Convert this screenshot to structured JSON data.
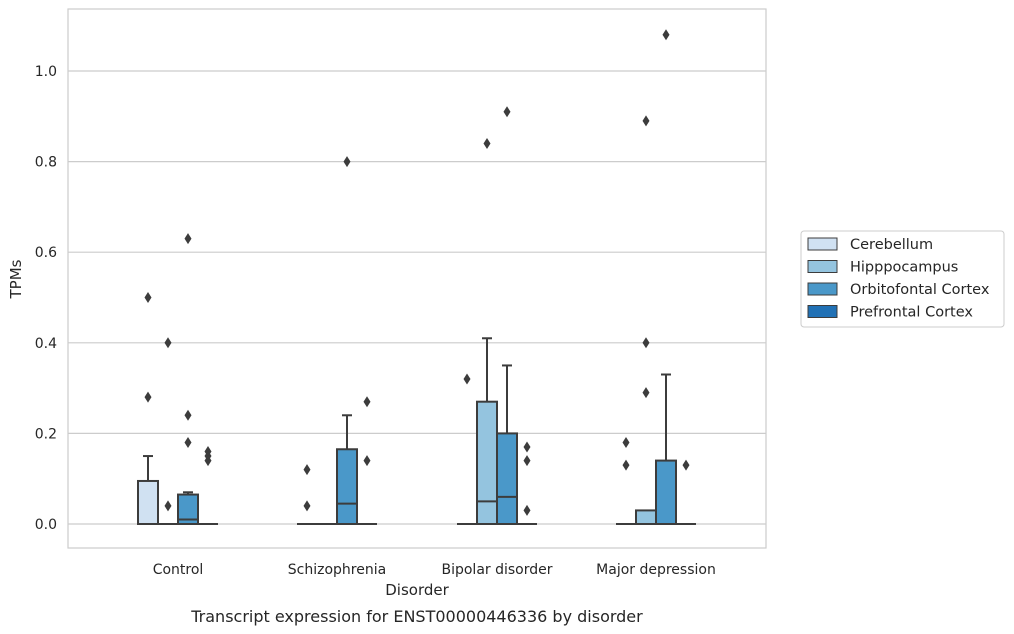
{
  "chart_data": {
    "type": "box",
    "title": "",
    "caption": "Transcript expression for ENST00000446336 by disorder",
    "xlabel": "Disorder",
    "ylabel": "TPMs",
    "ylim": [
      -0.05,
      1.14
    ],
    "yticks": [
      0.0,
      0.2,
      0.4,
      0.6,
      0.8,
      1.0
    ],
    "ytick_labels": [
      "0.0",
      "0.2",
      "0.4",
      "0.6",
      "0.8",
      "1.0"
    ],
    "grid": "horizontal",
    "legend_position": "right",
    "categories": [
      "Control",
      "Schizophrenia",
      "Bipolar disorder",
      "Major depression"
    ],
    "series": [
      {
        "name": "Cerebellum",
        "color": "#d0e1f2",
        "boxes": [
          {
            "q1": 0.0,
            "median": 0.0,
            "q3": 0.095,
            "whisker_low": 0.0,
            "whisker_high": 0.15,
            "outliers": [
              0.5,
              0.28
            ]
          },
          {
            "q1": 0.0,
            "median": 0.0,
            "q3": 0.0,
            "whisker_low": 0.0,
            "whisker_high": 0.0,
            "outliers": [
              0.12,
              0.04
            ]
          },
          {
            "q1": 0.0,
            "median": 0.0,
            "q3": 0.0,
            "whisker_low": 0.0,
            "whisker_high": 0.0,
            "outliers": [
              0.32
            ]
          },
          {
            "q1": 0.0,
            "median": 0.0,
            "q3": 0.0,
            "whisker_low": 0.0,
            "whisker_high": 0.0,
            "outliers": [
              0.18,
              0.13
            ]
          }
        ]
      },
      {
        "name": "Hipppocampus",
        "color": "#94c4df",
        "boxes": [
          {
            "q1": 0.0,
            "median": 0.0,
            "q3": 0.0,
            "whisker_low": 0.0,
            "whisker_high": 0.0,
            "outliers": [
              0.4,
              0.04
            ]
          },
          {
            "q1": 0.0,
            "median": 0.0,
            "q3": 0.0,
            "whisker_low": 0.0,
            "whisker_high": 0.0,
            "outliers": []
          },
          {
            "q1": 0.0,
            "median": 0.05,
            "q3": 0.27,
            "whisker_low": 0.0,
            "whisker_high": 0.41,
            "outliers": [
              0.84
            ]
          },
          {
            "q1": 0.0,
            "median": 0.0,
            "q3": 0.03,
            "whisker_low": 0.0,
            "whisker_high": 0.03,
            "outliers": [
              0.89,
              0.4,
              0.29
            ]
          }
        ]
      },
      {
        "name": "Orbitofontal Cortex",
        "color": "#4a98c9",
        "boxes": [
          {
            "q1": 0.0,
            "median": 0.01,
            "q3": 0.065,
            "whisker_low": 0.0,
            "whisker_high": 0.07,
            "outliers": [
              0.63,
              0.24,
              0.18
            ]
          },
          {
            "q1": 0.0,
            "median": 0.045,
            "q3": 0.165,
            "whisker_low": 0.0,
            "whisker_high": 0.24,
            "outliers": [
              0.8
            ]
          },
          {
            "q1": 0.0,
            "median": 0.06,
            "q3": 0.2,
            "whisker_low": 0.0,
            "whisker_high": 0.35,
            "outliers": [
              0.91
            ]
          },
          {
            "q1": 0.0,
            "median": 0.0,
            "q3": 0.14,
            "whisker_low": 0.0,
            "whisker_high": 0.33,
            "outliers": [
              1.08
            ]
          }
        ]
      },
      {
        "name": "Prefrontal Cortex",
        "color": "#2171b5",
        "boxes": [
          {
            "q1": 0.0,
            "median": 0.0,
            "q3": 0.0,
            "whisker_low": 0.0,
            "whisker_high": 0.0,
            "outliers": [
              0.16,
              0.15,
              0.14
            ]
          },
          {
            "q1": 0.0,
            "median": 0.0,
            "q3": 0.0,
            "whisker_low": 0.0,
            "whisker_high": 0.0,
            "outliers": [
              0.27,
              0.14
            ]
          },
          {
            "q1": 0.0,
            "median": 0.0,
            "q3": 0.0,
            "whisker_low": 0.0,
            "whisker_high": 0.0,
            "outliers": [
              0.17,
              0.14,
              0.03
            ]
          },
          {
            "q1": 0.0,
            "median": 0.0,
            "q3": 0.0,
            "whisker_low": 0.0,
            "whisker_high": 0.0,
            "outliers": [
              0.13
            ]
          }
        ]
      }
    ]
  }
}
